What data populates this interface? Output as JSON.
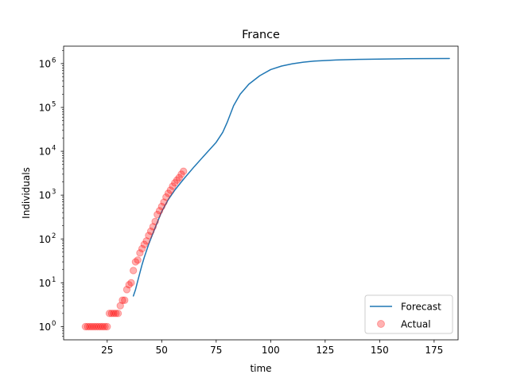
{
  "chart_data": {
    "type": "line",
    "title": "France",
    "xlabel": "time",
    "ylabel": "Individuals",
    "xlim": [
      5,
      186
    ],
    "ylim": [
      0.5,
      2500000
    ],
    "yscale": "log",
    "grid": false,
    "legend_position": "lower-right",
    "x_ticks": [
      25,
      50,
      75,
      100,
      125,
      150,
      175
    ],
    "y_ticks": [
      {
        "value": 1,
        "base": "10",
        "exp": "0"
      },
      {
        "value": 10,
        "base": "10",
        "exp": "1"
      },
      {
        "value": 100,
        "base": "10",
        "exp": "2"
      },
      {
        "value": 1000,
        "base": "10",
        "exp": "3"
      },
      {
        "value": 10000,
        "base": "10",
        "exp": "4"
      },
      {
        "value": 100000,
        "base": "10",
        "exp": "5"
      },
      {
        "value": 1000000,
        "base": "10",
        "exp": "6"
      }
    ],
    "series": [
      {
        "name": "Forecast",
        "kind": "line",
        "color": "#1f77b4",
        "x": [
          37,
          38,
          39,
          40,
          41,
          42,
          44,
          46,
          48,
          50,
          53,
          56,
          60,
          65,
          70,
          75,
          78,
          80,
          83,
          86,
          90,
          95,
          100,
          105,
          110,
          115,
          120,
          130,
          140,
          150,
          160,
          170,
          182
        ],
        "y": [
          5,
          7,
          11,
          17,
          26,
          38,
          75,
          135,
          240,
          420,
          790,
          1300,
          2300,
          4500,
          8500,
          16000,
          27000,
          45000,
          110000,
          200000,
          340000,
          530000,
          730000,
          880000,
          990000,
          1080000,
          1140000,
          1210000,
          1250000,
          1270000,
          1290000,
          1300000,
          1310000
        ]
      },
      {
        "name": "Actual",
        "kind": "scatter",
        "color": "#ff0000",
        "x": [
          15,
          16,
          17,
          18,
          19,
          20,
          21,
          22,
          23,
          24,
          25,
          26,
          27,
          28,
          29,
          30,
          31,
          32,
          33,
          34,
          35,
          36,
          37,
          38,
          39,
          40,
          41,
          42,
          43,
          44,
          45,
          46,
          47,
          48,
          49,
          50,
          51,
          52,
          53,
          54,
          55,
          56,
          57,
          58,
          59,
          60
        ],
        "y": [
          1,
          1,
          1,
          1,
          1,
          1,
          1,
          1,
          1,
          1,
          1,
          2,
          2,
          2,
          2,
          2,
          3,
          4,
          4,
          7,
          9,
          10,
          19,
          30,
          33,
          48,
          60,
          75,
          90,
          120,
          150,
          190,
          250,
          360,
          440,
          550,
          690,
          900,
          1100,
          1300,
          1600,
          1900,
          2200,
          2500,
          3000,
          3500
        ]
      }
    ]
  }
}
